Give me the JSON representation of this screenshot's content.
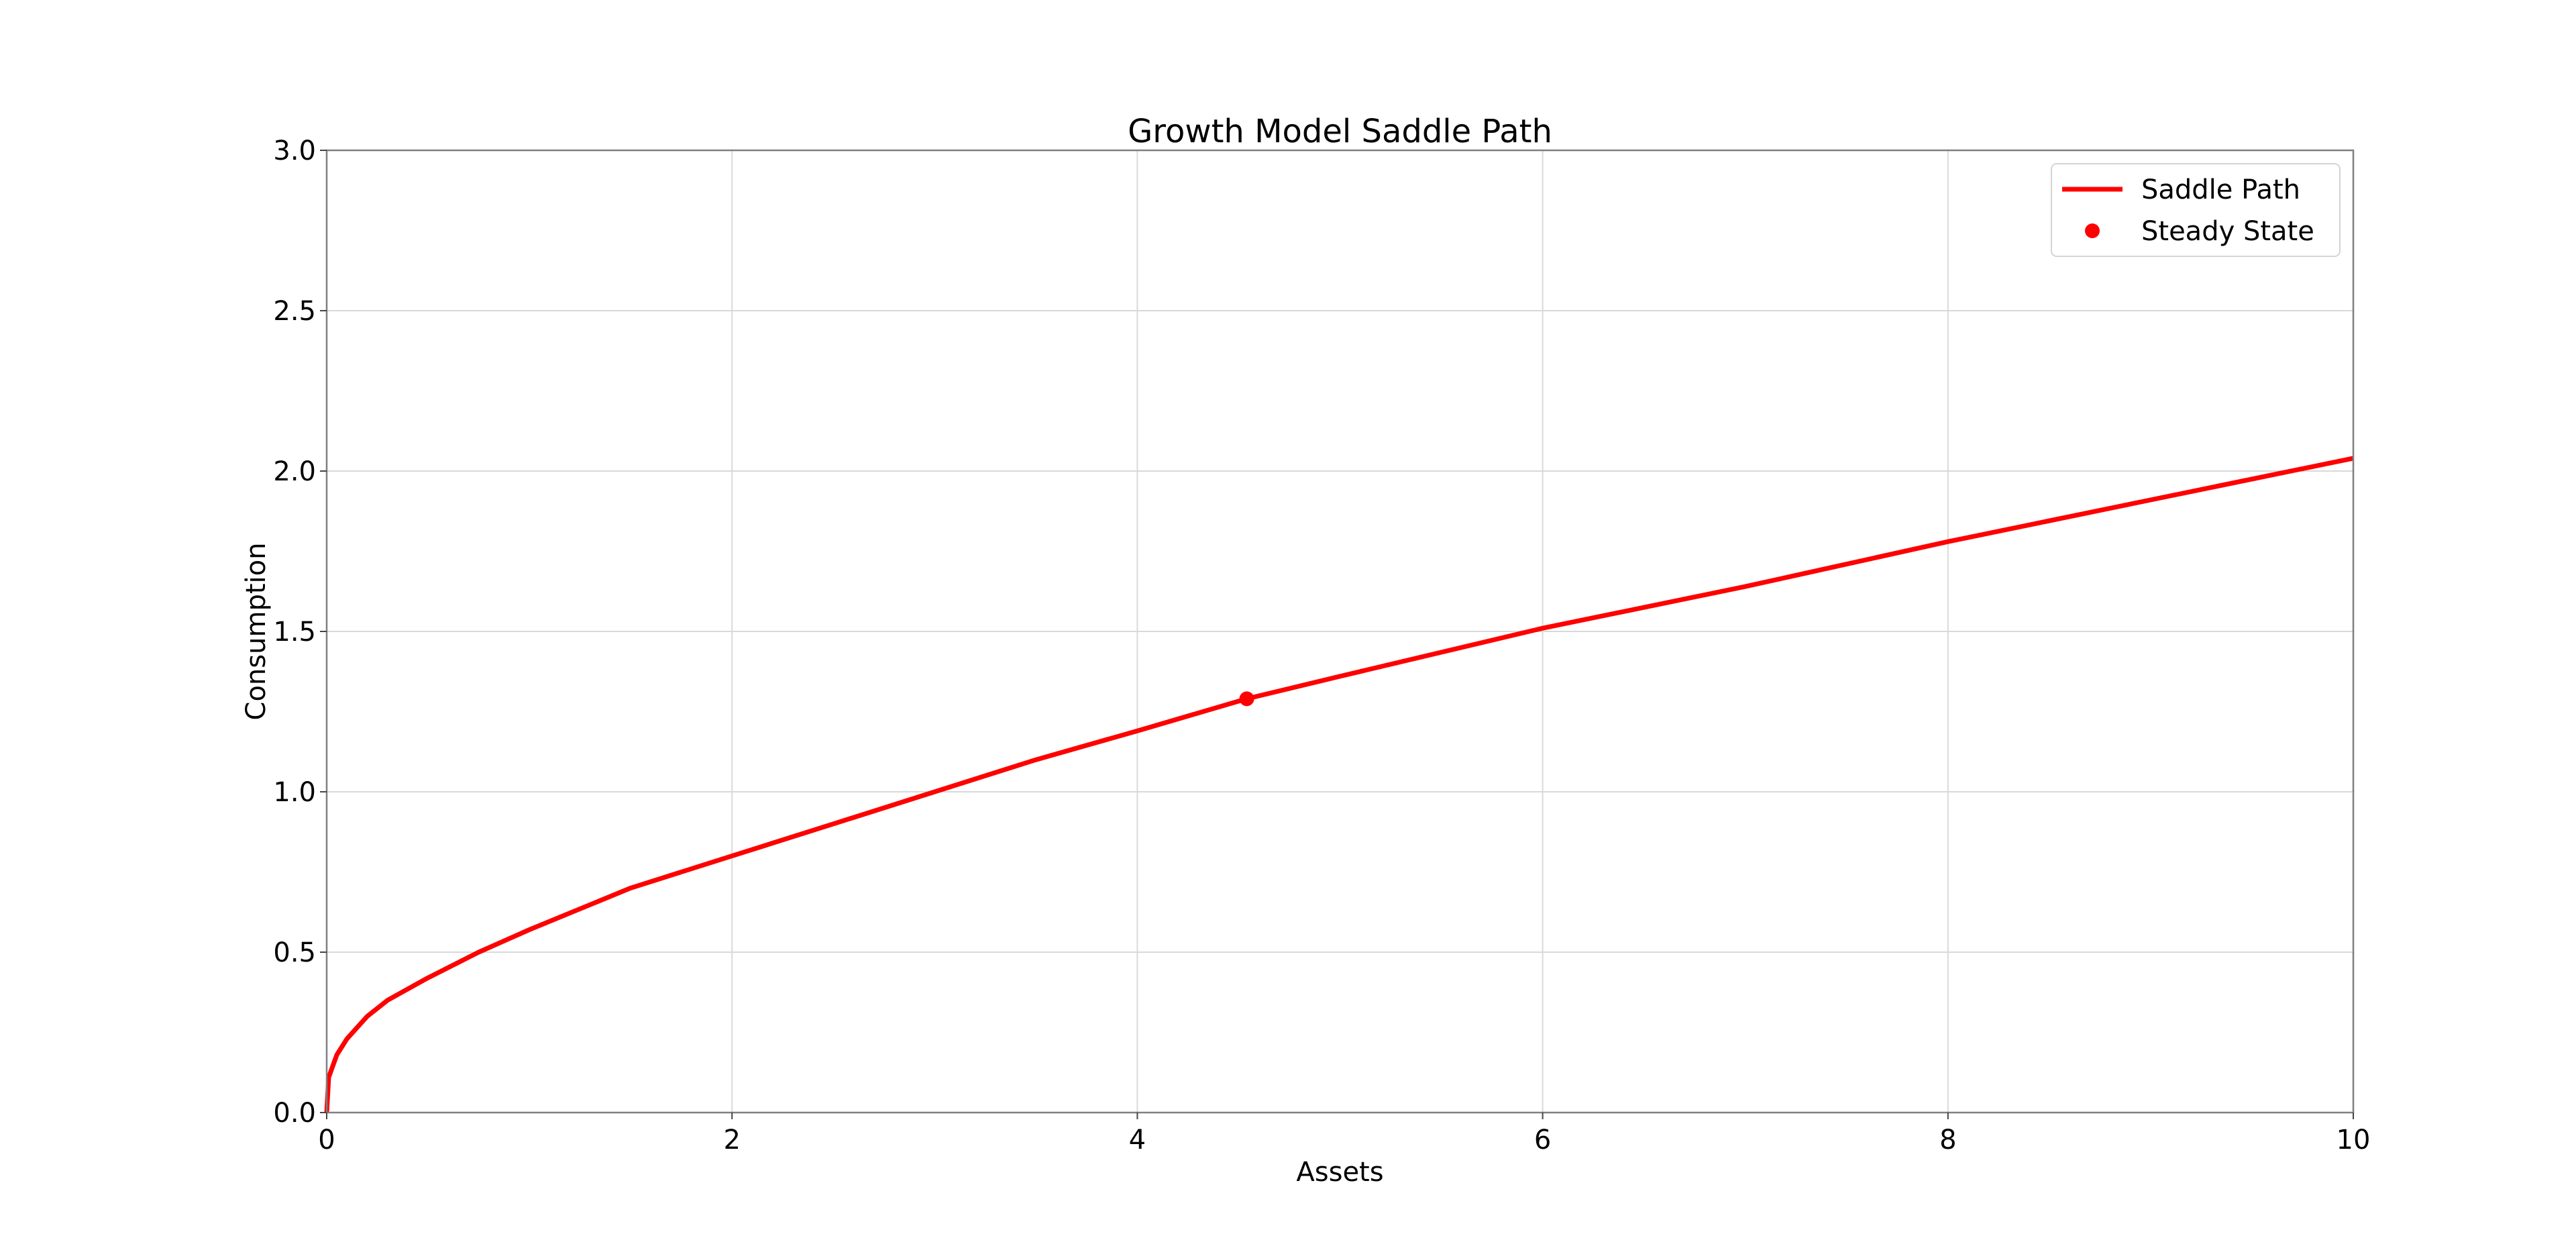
{
  "chart_data": {
    "type": "line",
    "title": "Growth Model Saddle Path",
    "xlabel": "Assets",
    "ylabel": "Consumption",
    "xlim": [
      0,
      10
    ],
    "ylim": [
      0,
      3
    ],
    "xticks": [
      0,
      2,
      4,
      6,
      8,
      10
    ],
    "xtick_labels": [
      "0",
      "2",
      "4",
      "6",
      "8",
      "10"
    ],
    "yticks": [
      0,
      0.5,
      1,
      1.5,
      2,
      2.5,
      3
    ],
    "ytick_labels": [
      "0.0",
      "0.5",
      "1.0",
      "1.5",
      "2.0",
      "2.5",
      "3.0"
    ],
    "grid": true,
    "legend_position": "top-right",
    "series": [
      {
        "name": "Saddle Path",
        "kind": "line",
        "color": "#ff0000",
        "x": [
          0,
          0.01,
          0.05,
          0.1,
          0.2,
          0.3,
          0.5,
          0.75,
          1.0,
          1.5,
          2.0,
          2.5,
          3.0,
          3.5,
          4.0,
          4.54,
          5.0,
          6.0,
          7.0,
          8.0,
          9.0,
          10.0
        ],
        "y": [
          0,
          0.11,
          0.18,
          0.23,
          0.3,
          0.35,
          0.42,
          0.5,
          0.57,
          0.7,
          0.8,
          0.9,
          1.0,
          1.1,
          1.19,
          1.29,
          1.36,
          1.51,
          1.64,
          1.78,
          1.91,
          2.04
        ]
      },
      {
        "name": "Steady State",
        "kind": "marker",
        "color": "#ff0000",
        "x": [
          4.54
        ],
        "y": [
          1.29
        ]
      }
    ]
  }
}
